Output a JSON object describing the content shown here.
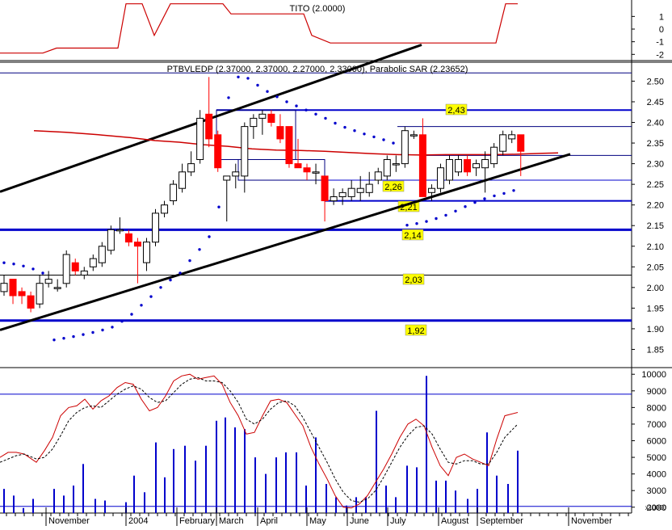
{
  "chart_data": [
    {
      "type": "line",
      "panel": "indicator",
      "title": "TITO (2.0000)",
      "y_ticks": [
        "1",
        "0",
        "-1",
        "-2"
      ],
      "ylim": [
        -2.3,
        2.3
      ],
      "line_color": "#cc0000",
      "series": [
        {
          "x": [
            0,
            53,
            70,
            146,
            156,
            176,
            191,
            211,
            221,
            276,
            286,
            373,
            376,
            386,
            409,
            468,
            474,
            614,
            626,
            641
          ],
          "values": [
            -1.9,
            -1.9,
            -1.5,
            -1.5,
            2.0,
            2.0,
            -0.5,
            2.0,
            2.0,
            2.0,
            1.2,
            1.2,
            1.2,
            -0.5,
            -1.1,
            -1.1,
            -1.1,
            -1.1,
            2.0,
            2.0
          ]
        }
      ]
    },
    {
      "type": "candlestick",
      "panel": "price",
      "title": "PTBVLEDP (2.37000, 2.37000, 2.27000, 2.33000), Parabolic SAR (2.23652)",
      "y_ticks": [
        "2.50",
        "2.45",
        "2.40",
        "2.35",
        "2.30",
        "2.25",
        "2.20",
        "2.15",
        "2.10",
        "2.05",
        "2.00",
        "1.95",
        "1.90",
        "1.85"
      ],
      "ylim": [
        1.8,
        2.54
      ],
      "x_labels": [
        "November",
        "2004",
        "February",
        "March",
        "April",
        "May",
        "June",
        "July",
        "August",
        "September",
        "November"
      ],
      "up_color": "#ffffff",
      "down_color": "#ff0000",
      "candles": [
        {
          "o": 1.99,
          "h": 2.03,
          "l": 1.98,
          "c": 2.01
        },
        {
          "o": 2.02,
          "h": 2.02,
          "l": 1.96,
          "c": 1.98
        },
        {
          "o": 1.99,
          "h": 2.0,
          "l": 1.96,
          "c": 1.98
        },
        {
          "o": 1.98,
          "h": 1.99,
          "l": 1.94,
          "c": 1.95
        },
        {
          "o": 1.96,
          "h": 2.03,
          "l": 1.95,
          "c": 2.01
        },
        {
          "o": 2.01,
          "h": 2.04,
          "l": 2.0,
          "c": 2.02
        },
        {
          "o": 2.0,
          "h": 2.02,
          "l": 1.99,
          "c": 2.0
        },
        {
          "o": 2.01,
          "h": 2.09,
          "l": 2.0,
          "c": 2.08
        },
        {
          "o": 2.06,
          "h": 2.07,
          "l": 2.03,
          "c": 2.04
        },
        {
          "o": 2.03,
          "h": 2.05,
          "l": 2.02,
          "c": 2.04
        },
        {
          "o": 2.05,
          "h": 2.08,
          "l": 2.04,
          "c": 2.07
        },
        {
          "o": 2.06,
          "h": 2.11,
          "l": 2.05,
          "c": 2.1
        },
        {
          "o": 2.09,
          "h": 2.15,
          "l": 2.08,
          "c": 2.14
        },
        {
          "o": 2.14,
          "h": 2.17,
          "l": 2.13,
          "c": 2.14
        },
        {
          "o": 2.13,
          "h": 2.14,
          "l": 2.1,
          "c": 2.11
        },
        {
          "o": 2.11,
          "h": 2.12,
          "l": 2.01,
          "c": 2.1
        },
        {
          "o": 2.06,
          "h": 2.12,
          "l": 2.04,
          "c": 2.11
        },
        {
          "o": 2.11,
          "h": 2.19,
          "l": 2.1,
          "c": 2.18
        },
        {
          "o": 2.18,
          "h": 2.21,
          "l": 2.17,
          "c": 2.2
        },
        {
          "o": 2.21,
          "h": 2.26,
          "l": 2.2,
          "c": 2.25
        },
        {
          "o": 2.24,
          "h": 2.3,
          "l": 2.23,
          "c": 2.28
        },
        {
          "o": 2.28,
          "h": 2.33,
          "l": 2.27,
          "c": 2.3
        },
        {
          "o": 2.31,
          "h": 2.43,
          "l": 2.3,
          "c": 2.41
        },
        {
          "o": 2.42,
          "h": 2.51,
          "l": 2.34,
          "c": 2.36
        },
        {
          "o": 2.37,
          "h": 2.38,
          "l": 2.28,
          "c": 2.29
        },
        {
          "o": 2.26,
          "h": 2.27,
          "l": 2.16,
          "c": 2.27
        },
        {
          "o": 2.27,
          "h": 2.3,
          "l": 2.24,
          "c": 2.28
        },
        {
          "o": 2.27,
          "h": 2.4,
          "l": 2.23,
          "c": 2.39
        },
        {
          "o": 2.39,
          "h": 2.42,
          "l": 2.36,
          "c": 2.41
        },
        {
          "o": 2.41,
          "h": 2.43,
          "l": 2.37,
          "c": 2.42
        },
        {
          "o": 2.42,
          "h": 2.43,
          "l": 2.39,
          "c": 2.4
        },
        {
          "o": 2.39,
          "h": 2.42,
          "l": 2.35,
          "c": 2.36
        },
        {
          "o": 2.39,
          "h": 2.39,
          "l": 2.29,
          "c": 2.3
        },
        {
          "o": 2.3,
          "h": 2.36,
          "l": 2.29,
          "c": 2.29
        },
        {
          "o": 2.29,
          "h": 2.3,
          "l": 2.26,
          "c": 2.28
        },
        {
          "o": 2.28,
          "h": 2.3,
          "l": 2.25,
          "c": 2.28
        },
        {
          "o": 2.27,
          "h": 2.27,
          "l": 2.16,
          "c": 2.21
        },
        {
          "o": 2.21,
          "h": 2.24,
          "l": 2.2,
          "c": 2.22
        },
        {
          "o": 2.22,
          "h": 2.24,
          "l": 2.2,
          "c": 2.23
        },
        {
          "o": 2.22,
          "h": 2.26,
          "l": 2.21,
          "c": 2.24
        },
        {
          "o": 2.23,
          "h": 2.27,
          "l": 2.21,
          "c": 2.24
        },
        {
          "o": 2.23,
          "h": 2.28,
          "l": 2.22,
          "c": 2.25
        },
        {
          "o": 2.26,
          "h": 2.29,
          "l": 2.25,
          "c": 2.28
        },
        {
          "o": 2.27,
          "h": 2.32,
          "l": 2.26,
          "c": 2.31
        },
        {
          "o": 2.3,
          "h": 2.32,
          "l": 2.28,
          "c": 2.3
        },
        {
          "o": 2.3,
          "h": 2.39,
          "l": 2.29,
          "c": 2.38
        },
        {
          "o": 2.37,
          "h": 2.38,
          "l": 2.36,
          "c": 2.37
        },
        {
          "o": 2.37,
          "h": 2.41,
          "l": 2.22,
          "c": 2.22
        },
        {
          "o": 2.23,
          "h": 2.25,
          "l": 2.21,
          "c": 2.24
        },
        {
          "o": 2.24,
          "h": 2.3,
          "l": 2.23,
          "c": 2.29
        },
        {
          "o": 2.26,
          "h": 2.32,
          "l": 2.25,
          "c": 2.31
        },
        {
          "o": 2.28,
          "h": 2.32,
          "l": 2.27,
          "c": 2.31
        },
        {
          "o": 2.31,
          "h": 2.32,
          "l": 2.27,
          "c": 2.28
        },
        {
          "o": 2.29,
          "h": 2.31,
          "l": 2.27,
          "c": 2.3
        },
        {
          "o": 2.29,
          "h": 2.33,
          "l": 2.23,
          "c": 2.31
        },
        {
          "o": 2.3,
          "h": 2.35,
          "l": 2.29,
          "c": 2.34
        },
        {
          "o": 2.33,
          "h": 2.38,
          "l": 2.32,
          "c": 2.37
        },
        {
          "o": 2.36,
          "h": 2.38,
          "l": 2.35,
          "c": 2.37
        },
        {
          "o": 2.37,
          "h": 2.37,
          "l": 2.27,
          "c": 2.33
        }
      ],
      "moving_average": {
        "color": "#cc0000",
        "x": [
          0,
          40,
          80,
          120,
          150,
          180,
          210,
          240,
          270,
          300,
          330,
          360,
          390,
          420,
          450,
          480,
          510,
          540,
          570,
          600,
          630,
          649
        ],
        "values": [
          2.38,
          2.376,
          2.37,
          2.363,
          2.356,
          2.352,
          2.346,
          2.342,
          2.336,
          2.333,
          2.332,
          2.33,
          2.327,
          2.324,
          2.322,
          2.321,
          2.322,
          2.322,
          2.322,
          2.323,
          2.325,
          2.326
        ]
      },
      "parabolic_sar": {
        "color": "#0000cc",
        "x": [
          5,
          17,
          29,
          41,
          53,
          67,
          79,
          91,
          103,
          115,
          127,
          139,
          151,
          163,
          175,
          187,
          199,
          211,
          223,
          235,
          247,
          259,
          271,
          283,
          295,
          307,
          319,
          331,
          343,
          355,
          367,
          379,
          391,
          403,
          415,
          427,
          439,
          451,
          463,
          475,
          487,
          504,
          516,
          528,
          540,
          552,
          564,
          576,
          588,
          600,
          612,
          624,
          636
        ],
        "values": [
          2.06,
          2.057,
          2.052,
          2.045,
          2.035,
          1.873,
          1.877,
          1.881,
          1.886,
          1.891,
          1.897,
          1.904,
          1.918,
          1.935,
          1.957,
          1.978,
          2.0,
          2.018,
          2.035,
          2.065,
          2.092,
          2.123,
          2.195,
          2.46,
          2.51,
          2.507,
          2.49,
          2.475,
          2.462,
          2.45,
          2.44,
          2.43,
          2.42,
          2.41,
          2.398,
          2.388,
          2.38,
          2.372,
          2.365,
          2.358,
          2.35,
          2.151,
          2.155,
          2.16,
          2.167,
          2.175,
          2.185,
          2.196,
          2.206,
          2.215,
          2.222,
          2.228,
          2.235
        ]
      },
      "trend_lines": [
        {
          "color": "#000000",
          "x": [
            0,
            522
          ],
          "values": [
            2.232,
            2.588
          ]
        },
        {
          "color": "#000000",
          "x": [
            0,
            706
          ],
          "values": [
            1.897,
            2.323
          ]
        }
      ],
      "levels": [
        {
          "value": 2.43,
          "label": "2,43",
          "color": "#0000cc",
          "x_start": 268,
          "x_end": 782,
          "width": 2
        },
        {
          "value": 2.26,
          "label": "2,26",
          "color": "#0000cc",
          "x_start": 295,
          "x_end": 782,
          "width": 1
        },
        {
          "value": 2.21,
          "label": "2,21",
          "color": "#0000cc",
          "x_start": 402,
          "x_end": 782,
          "width": 2
        },
        {
          "value": 2.14,
          "label": "2,14",
          "color": "#0000cc",
          "x_start": 0,
          "x_end": 782,
          "width": 3
        },
        {
          "value": 2.03,
          "label": "2,03",
          "color": "#000000",
          "x_start": 0,
          "x_end": 782,
          "width": 1
        },
        {
          "value": 1.92,
          "label": "1,92",
          "color": "#0000cc",
          "x_start": 0,
          "x_end": 782,
          "width": 3
        },
        {
          "value": 2.52,
          "label": "",
          "color": "#000080",
          "x_start": 0,
          "x_end": 782,
          "width": 1
        },
        {
          "value": 2.39,
          "label": "",
          "color": "#000080",
          "x_start": 492,
          "x_end": 782,
          "width": 1
        },
        {
          "value": 2.32,
          "label": "",
          "color": "#000080",
          "x_start": 520,
          "x_end": 782,
          "width": 1
        }
      ]
    },
    {
      "type": "bar",
      "panel": "volume",
      "y_ticks": [
        "10000",
        "9000",
        "8000",
        "7000",
        "6000",
        "5000",
        "4000",
        "3000",
        "2000"
      ],
      "y_multiplier_label": "x10000",
      "ylim": [
        1600,
        10400
      ],
      "bar_color": "#0000cc",
      "reference_levels": [
        8800,
        2050
      ],
      "x": [
        5,
        17,
        29,
        41,
        67,
        79,
        91,
        103,
        118,
        130,
        156,
        166,
        179,
        193,
        204,
        215,
        229,
        242,
        255,
        268,
        279,
        291,
        303,
        316,
        329,
        342,
        354,
        367,
        379,
        391,
        404,
        416,
        429,
        441,
        453,
        466,
        478,
        490,
        504,
        516,
        528,
        540,
        552,
        564,
        579,
        591,
        603,
        615,
        629,
        641
      ],
      "values": [
        3100,
        2700,
        1950,
        2500,
        3100,
        2700,
        3300,
        4600,
        2500,
        2400,
        2300,
        3900,
        2900,
        5900,
        3800,
        5500,
        5700,
        4800,
        5700,
        7200,
        7400,
        6800,
        6700,
        5000,
        4000,
        5000,
        5300,
        5300,
        3300,
        6200,
        3400,
        2600,
        2100,
        2600,
        2600,
        7800,
        3300,
        2600,
        4500,
        4400,
        9900,
        3600,
        3600,
        3000,
        2500,
        3100,
        6500,
        3900,
        3400,
        5400
      ]
    },
    {
      "type": "line",
      "panel": "oscillator",
      "series": [
        {
          "color": "#cc0000",
          "dashed": false,
          "x": [
            0,
            10,
            20,
            30,
            45,
            55,
            65,
            75,
            85,
            95,
            105,
            115,
            125,
            135,
            145,
            155,
            165,
            175,
            185,
            195,
            205,
            215,
            225,
            235,
            245,
            255,
            265,
            275,
            285,
            295,
            305,
            315,
            325,
            335,
            345,
            355,
            365,
            375,
            385,
            395,
            405,
            415,
            425,
            435,
            445,
            455,
            465,
            475,
            485,
            495,
            505,
            515,
            525,
            535,
            545,
            555,
            565,
            575,
            585,
            595,
            605,
            615,
            625,
            641
          ],
          "values": [
            5000,
            5300,
            5300,
            5200,
            4700,
            5400,
            6200,
            7500,
            8000,
            8100,
            8500,
            7900,
            8400,
            8700,
            9200,
            9500,
            9400,
            8500,
            7800,
            8000,
            8700,
            9600,
            9900,
            10000,
            9700,
            9800,
            9900,
            9400,
            8300,
            7500,
            6400,
            6500,
            7500,
            8400,
            8500,
            8300,
            7600,
            6900,
            5600,
            4600,
            3700,
            2700,
            2000,
            1950,
            2200,
            2700,
            3500,
            4300,
            5200,
            6200,
            7000,
            7300,
            6900,
            5600,
            4500,
            3900,
            5000,
            5200,
            4900,
            4700,
            4500,
            6100,
            7500,
            7700
          ]
        },
        {
          "color": "#000000",
          "dashed": true,
          "x": [
            0,
            10,
            20,
            30,
            45,
            55,
            65,
            75,
            85,
            95,
            105,
            115,
            125,
            135,
            145,
            155,
            165,
            175,
            185,
            195,
            205,
            215,
            225,
            235,
            245,
            255,
            265,
            275,
            285,
            295,
            305,
            315,
            325,
            335,
            345,
            355,
            365,
            375,
            385,
            395,
            405,
            415,
            425,
            435,
            445,
            455,
            465,
            475,
            485,
            495,
            505,
            515,
            525,
            535,
            545,
            555,
            565,
            575,
            585,
            595,
            605,
            615,
            625,
            641
          ],
          "values": [
            4700,
            4900,
            5100,
            5200,
            4900,
            5000,
            5500,
            6300,
            7200,
            7700,
            8000,
            8100,
            8000,
            8400,
            8800,
            9100,
            9300,
            9100,
            8600,
            8300,
            8400,
            8900,
            9400,
            9700,
            9800,
            9600,
            9600,
            9500,
            9000,
            8300,
            7300,
            7000,
            7300,
            7900,
            8300,
            8400,
            8100,
            7400,
            6500,
            5600,
            4700,
            3700,
            2900,
            2400,
            2300,
            2500,
            3000,
            3800,
            4700,
            5600,
            6300,
            6800,
            6900,
            6400,
            5500,
            4700,
            4600,
            4800,
            4800,
            4600,
            4600,
            5300,
            6200,
            7000
          ]
        }
      ]
    }
  ],
  "axis": {
    "x_labels": [
      "November",
      "2004",
      "February",
      "March",
      "April",
      "May",
      "June",
      "July",
      "August",
      "September",
      "November"
    ]
  }
}
